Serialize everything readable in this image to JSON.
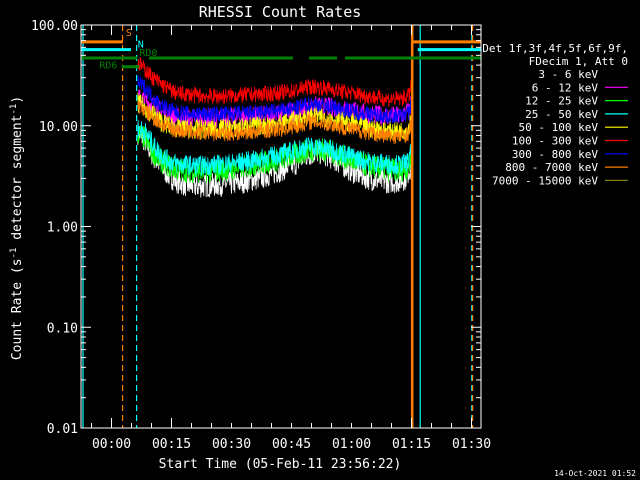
{
  "chart_data": {
    "type": "line",
    "title": "RHESSI Count Rates",
    "xlabel": "Start Time (05-Feb-11 23:56:22)",
    "ylabel_main": "Count Rate (s",
    "ylabel_sup1": "-1",
    "ylabel_mid": " detector segment",
    "ylabel_sup2": "-1",
    "ylabel_end": ")",
    "y_scale": "log",
    "ylim": [
      0.01,
      100
    ],
    "xlim_minutes": [
      -4,
      96
    ],
    "y_ticks": [
      {
        "value": 100,
        "label": "100.00"
      },
      {
        "value": 10,
        "label": "10.00"
      },
      {
        "value": 1,
        "label": "1.00"
      },
      {
        "value": 0.1,
        "label": "0.10"
      },
      {
        "value": 0.01,
        "label": "0.01"
      }
    ],
    "x_ticks": [
      {
        "minute": 3.63,
        "label": "00:00"
      },
      {
        "minute": 18.63,
        "label": "00:15"
      },
      {
        "minute": 33.63,
        "label": "00:30"
      },
      {
        "minute": 48.63,
        "label": "00:45"
      },
      {
        "minute": 63.63,
        "label": "01:00"
      },
      {
        "minute": 78.63,
        "label": "01:15"
      },
      {
        "minute": 93.63,
        "label": "01:30"
      }
    ],
    "grid": false,
    "legend": {
      "placement": "right",
      "header": [
        "Det 1f,3f,4f,5f,6f,9f,",
        "FDecim 1, Att 0"
      ],
      "entries": [
        {
          "label": "3 - 6 keV",
          "color": "#000000"
        },
        {
          "label": "6 - 12 keV",
          "color": "#ff00ff"
        },
        {
          "label": "12 - 25 keV",
          "color": "#00ff00"
        },
        {
          "label": "25 - 50 keV",
          "color": "#00ffff"
        },
        {
          "label": "50 - 100 keV",
          "color": "#ffff00"
        },
        {
          "label": "100 - 300 keV",
          "color": "#ff0000"
        },
        {
          "label": "300 - 800 keV",
          "color": "#0000ff"
        },
        {
          "label": "800 - 7000 keV",
          "color": "#ff8000"
        },
        {
          "label": "7000 - 15000 keV",
          "color": "#808000"
        }
      ]
    },
    "series": [
      {
        "color": "#ffffff",
        "noise": 0.12,
        "points": [
          [
            10.2,
            8.5
          ],
          [
            11,
            8
          ],
          [
            12,
            7
          ],
          [
            14,
            5
          ],
          [
            16,
            4
          ],
          [
            18,
            3.2
          ],
          [
            20,
            2.8
          ],
          [
            22,
            2.6
          ],
          [
            25,
            2.5
          ],
          [
            30,
            2.6
          ],
          [
            35,
            2.7
          ],
          [
            40,
            3
          ],
          [
            45,
            3.5
          ],
          [
            50,
            4.3
          ],
          [
            52,
            5
          ],
          [
            55,
            5.5
          ],
          [
            58,
            5
          ],
          [
            61,
            4.2
          ],
          [
            64,
            3.5
          ],
          [
            68,
            3
          ],
          [
            72,
            2.8
          ],
          [
            75,
            2.8
          ],
          [
            77,
            3
          ],
          [
            78.6,
            4
          ]
        ]
      },
      {
        "color": "#ff00ff",
        "noise": 0.1,
        "points": [
          [
            10.2,
            19
          ],
          [
            12,
            18
          ],
          [
            14,
            16
          ],
          [
            16,
            14
          ],
          [
            18,
            13
          ],
          [
            20,
            12
          ],
          [
            25,
            12
          ],
          [
            30,
            12
          ],
          [
            35,
            12
          ],
          [
            40,
            12.5
          ],
          [
            45,
            13
          ],
          [
            50,
            14
          ],
          [
            53,
            15.5
          ],
          [
            56,
            15.5
          ],
          [
            60,
            15
          ],
          [
            64,
            14
          ],
          [
            68,
            13
          ],
          [
            72,
            12.5
          ],
          [
            76,
            12.5
          ],
          [
            78,
            14
          ],
          [
            78.6,
            18
          ]
        ]
      },
      {
        "color": "#00ff00",
        "noise": 0.12,
        "points": [
          [
            10.2,
            8.5
          ],
          [
            12,
            7.5
          ],
          [
            14,
            5.5
          ],
          [
            16,
            4.5
          ],
          [
            18,
            4
          ],
          [
            20,
            3.7
          ],
          [
            25,
            3.5
          ],
          [
            30,
            3.6
          ],
          [
            35,
            3.8
          ],
          [
            40,
            4.2
          ],
          [
            45,
            4.6
          ],
          [
            50,
            5.2
          ],
          [
            53,
            5.8
          ],
          [
            56,
            5.8
          ],
          [
            60,
            5.3
          ],
          [
            64,
            4.5
          ],
          [
            68,
            4
          ],
          [
            72,
            3.7
          ],
          [
            76,
            3.6
          ],
          [
            78,
            3.9
          ],
          [
            78.6,
            5
          ]
        ]
      },
      {
        "color": "#00ffff",
        "noise": 0.1,
        "points": [
          [
            10.2,
            9.5
          ],
          [
            12,
            8.8
          ],
          [
            14,
            6.5
          ],
          [
            16,
            5.2
          ],
          [
            18,
            4.5
          ],
          [
            20,
            4.2
          ],
          [
            25,
            4
          ],
          [
            30,
            4.1
          ],
          [
            35,
            4.3
          ],
          [
            40,
            4.6
          ],
          [
            45,
            5.1
          ],
          [
            50,
            5.8
          ],
          [
            53,
            6.3
          ],
          [
            56,
            6.1
          ],
          [
            60,
            5.6
          ],
          [
            64,
            4.9
          ],
          [
            68,
            4.4
          ],
          [
            72,
            4.2
          ],
          [
            76,
            4.1
          ],
          [
            78,
            4.4
          ],
          [
            78.6,
            6
          ]
        ]
      },
      {
        "color": "#ffff00",
        "noise": 0.1,
        "points": [
          [
            10.2,
            17
          ],
          [
            12,
            15
          ],
          [
            14,
            13
          ],
          [
            16,
            11
          ],
          [
            18,
            10
          ],
          [
            20,
            9.5
          ],
          [
            25,
            9.2
          ],
          [
            30,
            9.3
          ],
          [
            35,
            9.5
          ],
          [
            40,
            10
          ],
          [
            45,
            10.5
          ],
          [
            50,
            11.5
          ],
          [
            53,
            12.5
          ],
          [
            56,
            12.3
          ],
          [
            60,
            11.5
          ],
          [
            64,
            10.5
          ],
          [
            68,
            9.5
          ],
          [
            72,
            9
          ],
          [
            76,
            8.8
          ],
          [
            78,
            9.5
          ],
          [
            78.6,
            13
          ]
        ]
      },
      {
        "color": "#ff0000",
        "noise": 0.08,
        "points": [
          [
            10.2,
            42
          ],
          [
            11,
            40
          ],
          [
            12,
            36
          ],
          [
            14,
            30
          ],
          [
            16,
            26
          ],
          [
            18,
            23
          ],
          [
            20,
            21
          ],
          [
            25,
            20
          ],
          [
            30,
            19.5
          ],
          [
            35,
            20
          ],
          [
            40,
            20.5
          ],
          [
            45,
            21
          ],
          [
            50,
            22.5
          ],
          [
            53,
            24.5
          ],
          [
            56,
            24
          ],
          [
            60,
            22.5
          ],
          [
            64,
            21
          ],
          [
            68,
            19.5
          ],
          [
            72,
            18.5
          ],
          [
            76,
            18.5
          ],
          [
            78,
            20
          ],
          [
            78.6,
            26
          ]
        ]
      },
      {
        "color": "#0000ff",
        "noise": 0.08,
        "points": [
          [
            10.2,
            27
          ],
          [
            12,
            24
          ],
          [
            14,
            19
          ],
          [
            16,
            16
          ],
          [
            18,
            14.5
          ],
          [
            20,
            13.5
          ],
          [
            25,
            13
          ],
          [
            30,
            13
          ],
          [
            35,
            13.2
          ],
          [
            40,
            13.5
          ],
          [
            45,
            14
          ],
          [
            50,
            15
          ],
          [
            53,
            16.5
          ],
          [
            56,
            16.2
          ],
          [
            60,
            15
          ],
          [
            64,
            14
          ],
          [
            68,
            13
          ],
          [
            72,
            12.5
          ],
          [
            76,
            12.5
          ],
          [
            78,
            13.5
          ],
          [
            78.6,
            17
          ]
        ]
      },
      {
        "color": "#ff8000",
        "noise": 0.08,
        "points": [
          [
            10.2,
            16
          ],
          [
            12,
            14
          ],
          [
            14,
            12
          ],
          [
            16,
            10.5
          ],
          [
            18,
            9.5
          ],
          [
            20,
            9
          ],
          [
            25,
            8.5
          ],
          [
            30,
            8.4
          ],
          [
            35,
            8.5
          ],
          [
            40,
            8.8
          ],
          [
            45,
            9.2
          ],
          [
            50,
            10
          ],
          [
            53,
            11
          ],
          [
            56,
            10.8
          ],
          [
            60,
            10
          ],
          [
            64,
            9.2
          ],
          [
            68,
            8.5
          ],
          [
            72,
            8
          ],
          [
            76,
            7.8
          ],
          [
            78,
            8.5
          ],
          [
            78.6,
            11
          ]
        ]
      }
    ],
    "annotations": {
      "flag_rows": [
        {
          "color": "#ff8000",
          "y_value": 68,
          "segments": [
            [
              -4,
              6.5
            ],
            [
              78.8,
              96
            ]
          ]
        },
        {
          "color": "#00ffff",
          "y_value": 57,
          "segments": [
            [
              -4,
              8.5
            ],
            [
              80.2,
              96
            ]
          ]
        },
        {
          "color": "#008000",
          "y_value": 47,
          "segments": [
            [
              -4,
              10
            ],
            [
              13,
              49
            ],
            [
              53,
              60
            ],
            [
              62,
              96
            ]
          ]
        },
        {
          "color": "#008000",
          "y_value": 38.5,
          "segments": [
            [
              6.2,
              10.5
            ]
          ]
        }
      ],
      "labels": [
        {
          "text": "S",
          "color": "#ff8000",
          "minute": 7.2,
          "y_value": 78
        },
        {
          "text": "N",
          "color": "#00ffff",
          "minute": 10.2,
          "y_value": 60
        },
        {
          "text": "RD6",
          "color": "#008000",
          "minute": 0.6,
          "y_value": 37
        },
        {
          "text": "RD0",
          "color": "#008000",
          "minute": 10.6,
          "y_value": 49
        }
      ],
      "vlines": [
        {
          "minute": -3.5,
          "color": "#00ffff",
          "dash": "solid"
        },
        {
          "minute": 6.4,
          "color": "#ff8000",
          "dash": "dashed"
        },
        {
          "minute": 9.9,
          "color": "#00ffff",
          "dash": "dashed"
        },
        {
          "minute": 78.8,
          "color": "#ff8000",
          "dash": "solid",
          "width": 2.5
        },
        {
          "minute": 80.8,
          "color": "#00ffff",
          "dash": "solid"
        },
        {
          "minute": 93.7,
          "color": "#00ffff",
          "dash": "dashed"
        },
        {
          "minute": 93.9,
          "color": "#ff8000",
          "dash": "dashed"
        }
      ]
    }
  },
  "footer": {
    "timestamp": "14-Oct-2021 01:52"
  }
}
